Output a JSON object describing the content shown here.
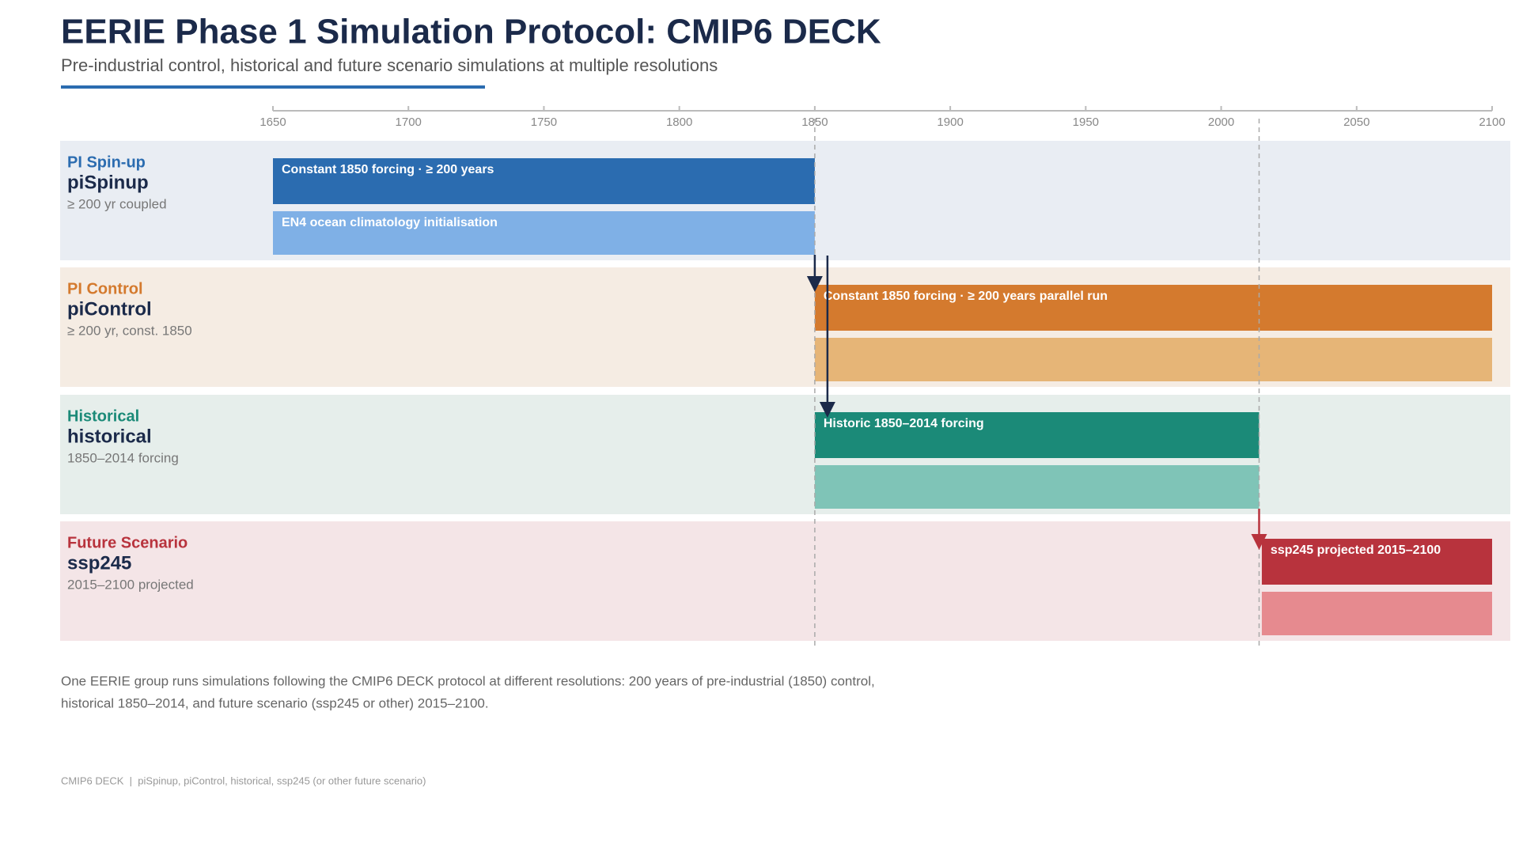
{
  "chart_data": {
    "type": "gantt",
    "title": "EERIE Phase 1 Simulation Protocol: CMIP6 DECK",
    "subtitle": "Pre-industrial control, historical and future scenario simulations at multiple resolutions",
    "xlim": [
      1650,
      2100
    ],
    "xticks": [
      1650,
      1700,
      1750,
      1800,
      1850,
      1900,
      1950,
      2000,
      2050,
      2100
    ],
    "markers": [
      1850,
      2014
    ],
    "rows": [
      {
        "group": "PI Spin-up",
        "name": "piSpinup",
        "note": "≥ 200 yr coupled",
        "color": "#2b6cb0",
        "background": "#f0f4fa",
        "bars": [
          {
            "label": "Constant 1850 forcing · ≥ 200 years",
            "start": 1650,
            "end": 1850,
            "color": "#2b6cb0"
          },
          {
            "label": "EN4 ocean climatology initialisation",
            "start": 1650,
            "end": 1850,
            "color": "#7fb0e6"
          }
        ]
      },
      {
        "group": "PI Control",
        "name": "piControl",
        "note": "≥ 200 yr, const. 1850",
        "color": "#d47a2e",
        "background": "#fdf3ea",
        "bars": [
          {
            "label": "Constant 1850 forcing · ≥ 200 years parallel run",
            "start": 1850,
            "end": 2100,
            "color": "#d47a2e"
          },
          {
            "start": 1850,
            "end": 2100,
            "color": "#e6b577"
          }
        ]
      },
      {
        "group": "Historical",
        "name": "historical",
        "note": "1850–2014 forcing",
        "color": "#1b8a78",
        "background": "#edf5f2",
        "bars": [
          {
            "label": "Historic 1850–2014 forcing",
            "start": 1850,
            "end": 2014,
            "color": "#1b8a78"
          },
          {
            "start": 1850,
            "end": 2014,
            "color": "#7fc4b7"
          }
        ]
      },
      {
        "group": "Future Scenario",
        "name": "ssp245",
        "note": "2015–2100 projected",
        "color": "#b8333d",
        "background": "#fcecee",
        "bars": [
          {
            "label": "ssp245 projected 2015–2100",
            "start": 2015,
            "end": 2100,
            "color": "#b8333d"
          },
          {
            "start": 2015,
            "end": 2100,
            "color": "#e68a8f"
          }
        ]
      }
    ],
    "caption_lines": [
      "One EERIE group runs simulations following the CMIP6 DECK protocol at different resolutions: 200 years of pre-industrial (1850) control,",
      "historical 1850–2014, and future scenario (ssp245 or other) 2015–2100."
    ],
    "footer": "CMIP6 DECK  |  piSpinup, piControl, historical, ssp245 (or other future scenario)"
  }
}
